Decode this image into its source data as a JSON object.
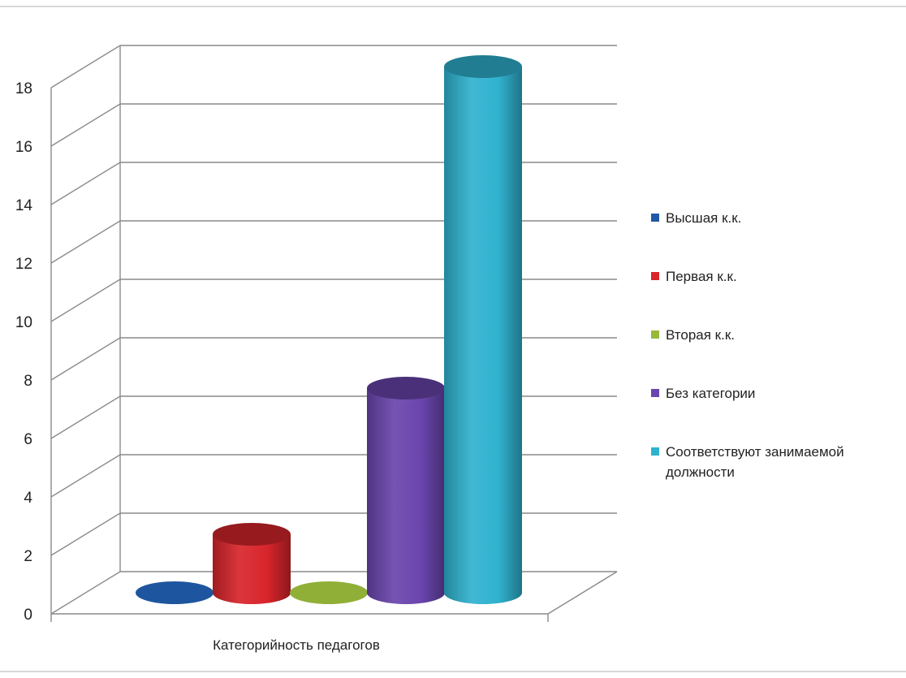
{
  "chart_data": {
    "type": "bar",
    "categories": [
      "Категорийность педагогов"
    ],
    "series": [
      {
        "name": "Высшая к.к.",
        "values": [
          0
        ],
        "color": "#1f5aa6"
      },
      {
        "name": "Первая к.к.",
        "values": [
          2
        ],
        "color": "#d8252b"
      },
      {
        "name": "Вторая к.к.",
        "values": [
          0
        ],
        "color": "#98b83a"
      },
      {
        "name": "Без категории",
        "values": [
          7
        ],
        "color": "#6a45ad"
      },
      {
        "name": "Соответствуют занимаемой должности",
        "values": [
          18
        ],
        "color": "#2fb2cf"
      }
    ],
    "ylim": [
      0,
      18
    ],
    "yticks": [
      0,
      2,
      4,
      6,
      8,
      10,
      12,
      14,
      16,
      18
    ],
    "grid": true,
    "legend_position": "right",
    "style": "3d-cylinder"
  }
}
